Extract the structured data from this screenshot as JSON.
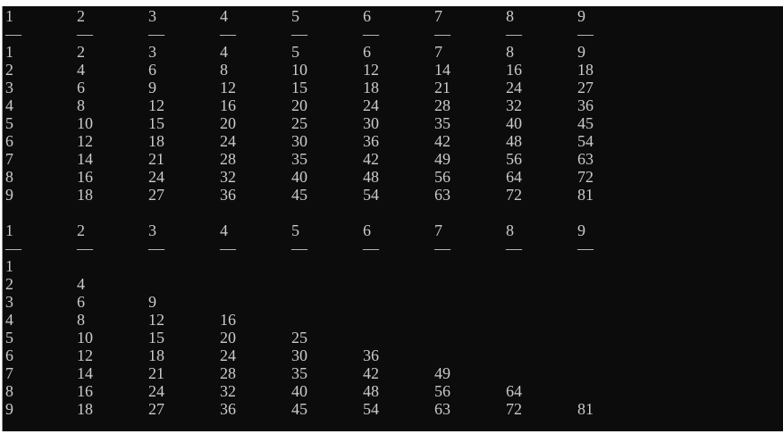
{
  "terminal": {
    "colors": {
      "background": "#0c0c0c",
      "text": "#cccccc"
    },
    "blocks": [
      {
        "header": [
          "1",
          "2",
          "3",
          "4",
          "5",
          "6",
          "7",
          "8",
          "9"
        ],
        "separator": [
          "—",
          "—",
          "—",
          "—",
          "—",
          "—",
          "—",
          "—",
          "—"
        ],
        "rows": [
          [
            "1",
            "2",
            "3",
            "4",
            "5",
            "6",
            "7",
            "8",
            "9"
          ],
          [
            "2",
            "4",
            "6",
            "8",
            "10",
            "12",
            "14",
            "16",
            "18"
          ],
          [
            "3",
            "6",
            "9",
            "12",
            "15",
            "18",
            "21",
            "24",
            "27"
          ],
          [
            "4",
            "8",
            "12",
            "16",
            "20",
            "24",
            "28",
            "32",
            "36"
          ],
          [
            "5",
            "10",
            "15",
            "20",
            "25",
            "30",
            "35",
            "40",
            "45"
          ],
          [
            "6",
            "12",
            "18",
            "24",
            "30",
            "36",
            "42",
            "48",
            "54"
          ],
          [
            "7",
            "14",
            "21",
            "28",
            "35",
            "42",
            "49",
            "56",
            "63"
          ],
          [
            "8",
            "16",
            "24",
            "32",
            "40",
            "48",
            "56",
            "64",
            "72"
          ],
          [
            "9",
            "18",
            "27",
            "36",
            "45",
            "54",
            "63",
            "72",
            "81"
          ]
        ]
      },
      {
        "header": [
          "1",
          "2",
          "3",
          "4",
          "5",
          "6",
          "7",
          "8",
          "9"
        ],
        "separator": [
          "—",
          "—",
          "—",
          "—",
          "—",
          "—",
          "—",
          "—",
          "—"
        ],
        "rows": [
          [
            "1"
          ],
          [
            "2",
            "4"
          ],
          [
            "3",
            "6",
            "9"
          ],
          [
            "4",
            "8",
            "12",
            "16"
          ],
          [
            "5",
            "10",
            "15",
            "20",
            "25"
          ],
          [
            "6",
            "12",
            "18",
            "24",
            "30",
            "36"
          ],
          [
            "7",
            "14",
            "21",
            "28",
            "35",
            "42",
            "49"
          ],
          [
            "8",
            "16",
            "24",
            "32",
            "40",
            "48",
            "56",
            "64"
          ],
          [
            "9",
            "18",
            "27",
            "36",
            "45",
            "54",
            "63",
            "72",
            "81"
          ]
        ]
      }
    ]
  }
}
